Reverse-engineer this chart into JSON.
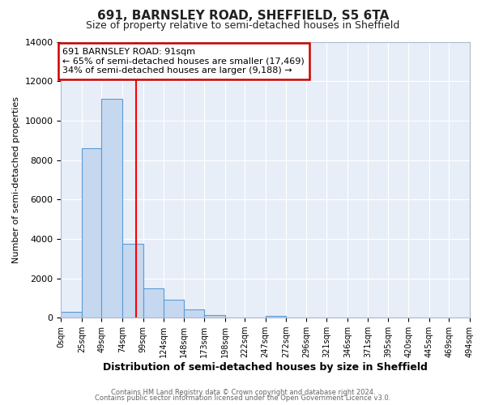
{
  "title": "691, BARNSLEY ROAD, SHEFFIELD, S5 6TA",
  "subtitle": "Size of property relative to semi-detached houses in Sheffield",
  "xlabel": "Distribution of semi-detached houses by size in Sheffield",
  "ylabel": "Number of semi-detached properties",
  "bar_edges": [
    0,
    25,
    49,
    74,
    99,
    124,
    148,
    173,
    198,
    222,
    247,
    272,
    296,
    321,
    346,
    371,
    395,
    420,
    445,
    469,
    494
  ],
  "bar_heights": [
    300,
    8600,
    11100,
    3750,
    1500,
    900,
    400,
    150,
    0,
    0,
    100,
    0,
    0,
    0,
    0,
    0,
    0,
    0,
    0,
    0
  ],
  "bar_color": "#c5d8f0",
  "bar_edgecolor": "#5b9bd5",
  "property_line_x": 91,
  "annotation_line1": "691 BARNSLEY ROAD: 91sqm",
  "annotation_line2": "← 65% of semi-detached houses are smaller (17,469)",
  "annotation_line3": "34% of semi-detached houses are larger (9,188) →",
  "annotation_box_color": "#cc0000",
  "ylim": [
    0,
    14000
  ],
  "yticks": [
    0,
    2000,
    4000,
    6000,
    8000,
    10000,
    12000,
    14000
  ],
  "tick_labels": [
    "0sqm",
    "25sqm",
    "49sqm",
    "74sqm",
    "99sqm",
    "124sqm",
    "148sqm",
    "173sqm",
    "198sqm",
    "222sqm",
    "247sqm",
    "272sqm",
    "296sqm",
    "321sqm",
    "346sqm",
    "371sqm",
    "395sqm",
    "420sqm",
    "445sqm",
    "469sqm",
    "494sqm"
  ],
  "footer1": "Contains HM Land Registry data © Crown copyright and database right 2024.",
  "footer2": "Contains public sector information licensed under the Open Government Licence v3.0.",
  "bg_color": "#ffffff",
  "plot_bg_color": "#e8eef8",
  "grid_color": "#ffffff",
  "title_fontsize": 11,
  "subtitle_fontsize": 9,
  "xlabel_fontsize": 9,
  "ylabel_fontsize": 8,
  "tick_fontsize": 7,
  "ytick_fontsize": 8,
  "footer_fontsize": 6,
  "annot_fontsize": 8
}
